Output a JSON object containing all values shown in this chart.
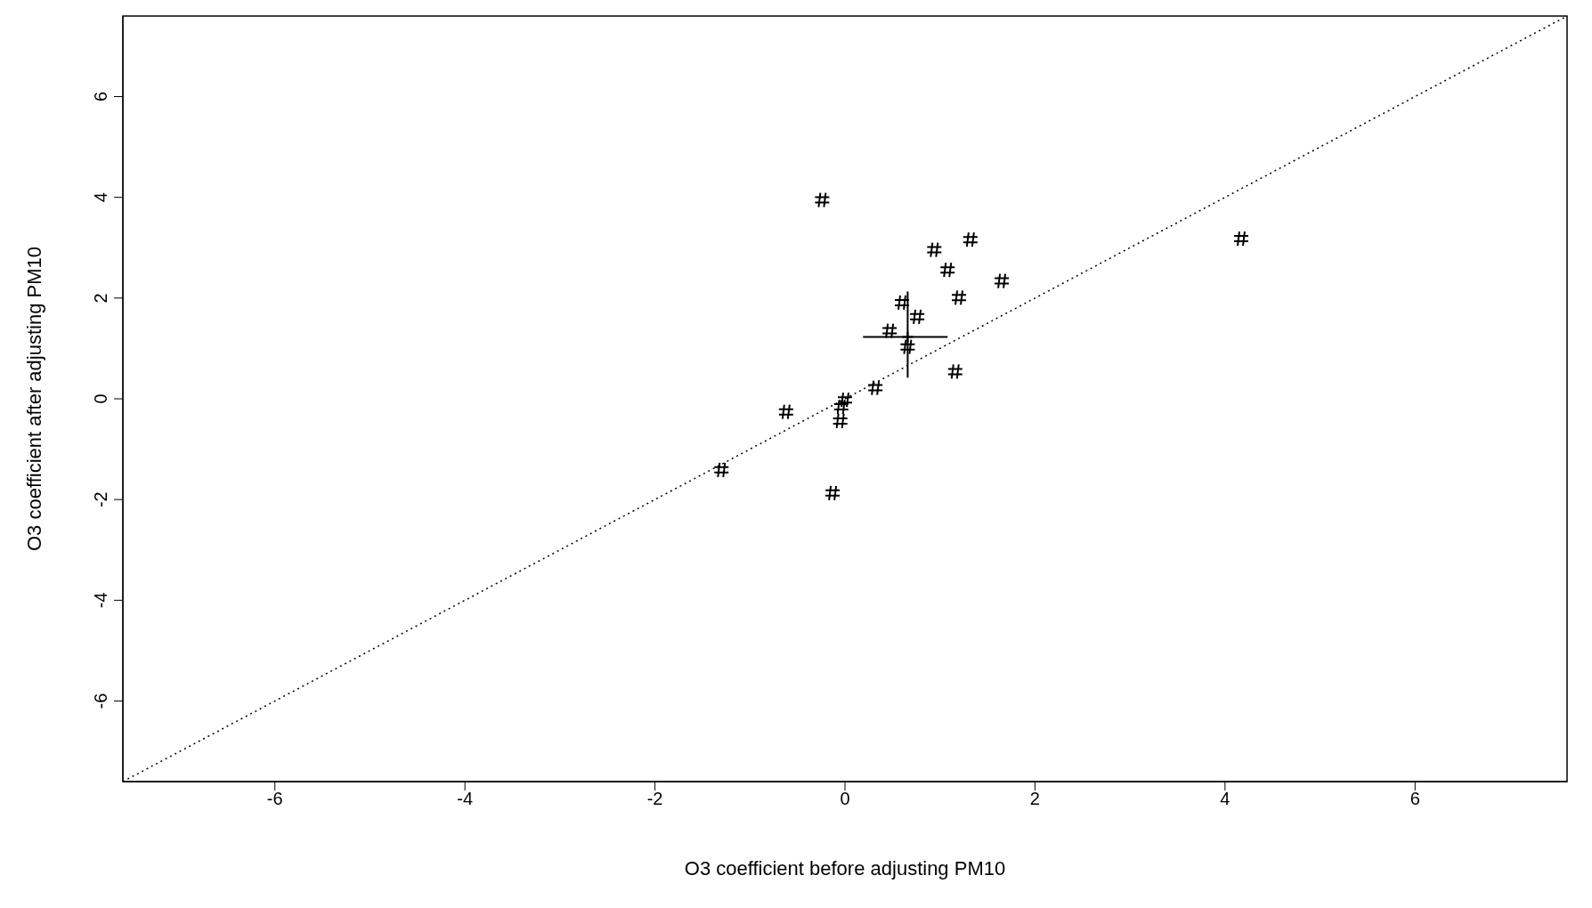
{
  "chart_data": {
    "type": "scatter",
    "xlabel": "O3 coefficient before adjusting PM10",
    "ylabel": "O3 coefficient after adjusting PM10",
    "xlim": [
      -7.6,
      7.6
    ],
    "ylim": [
      -7.6,
      7.6
    ],
    "xticks": [
      -6,
      -4,
      -2,
      0,
      2,
      4,
      6
    ],
    "yticks": [
      -6,
      -4,
      -2,
      0,
      2,
      4,
      6
    ],
    "series": [
      {
        "color": "#000000",
        "x": [
          -0.24,
          0.94,
          1.32,
          1.08,
          1.65,
          1.2,
          0.6,
          0.76,
          0.47,
          0.66,
          1.16,
          0.32,
          0.0,
          -0.04,
          -0.05,
          -0.62,
          -1.3,
          -0.13,
          4.17
        ],
        "values": [
          3.95,
          2.96,
          3.16,
          2.56,
          2.34,
          2.01,
          1.91,
          1.63,
          1.35,
          1.03,
          0.54,
          0.22,
          -0.02,
          -0.16,
          -0.44,
          -0.26,
          -1.41,
          -1.87,
          3.18
        ]
      },
      {
        "color": "#000000",
        "marker": "cross",
        "x": [
          0.66
        ],
        "values": [
          1.23
        ],
        "errors": [
          [
            0.42,
            2.13
          ]
        ],
        "xerrors": [
          [
            0.19,
            1.08
          ]
        ]
      },
      {
        "type": "line",
        "color": "#000000",
        "line_style": "dotted",
        "x": [
          -7.6,
          7.6
        ],
        "values": [
          -7.6,
          7.6
        ]
      }
    ]
  }
}
